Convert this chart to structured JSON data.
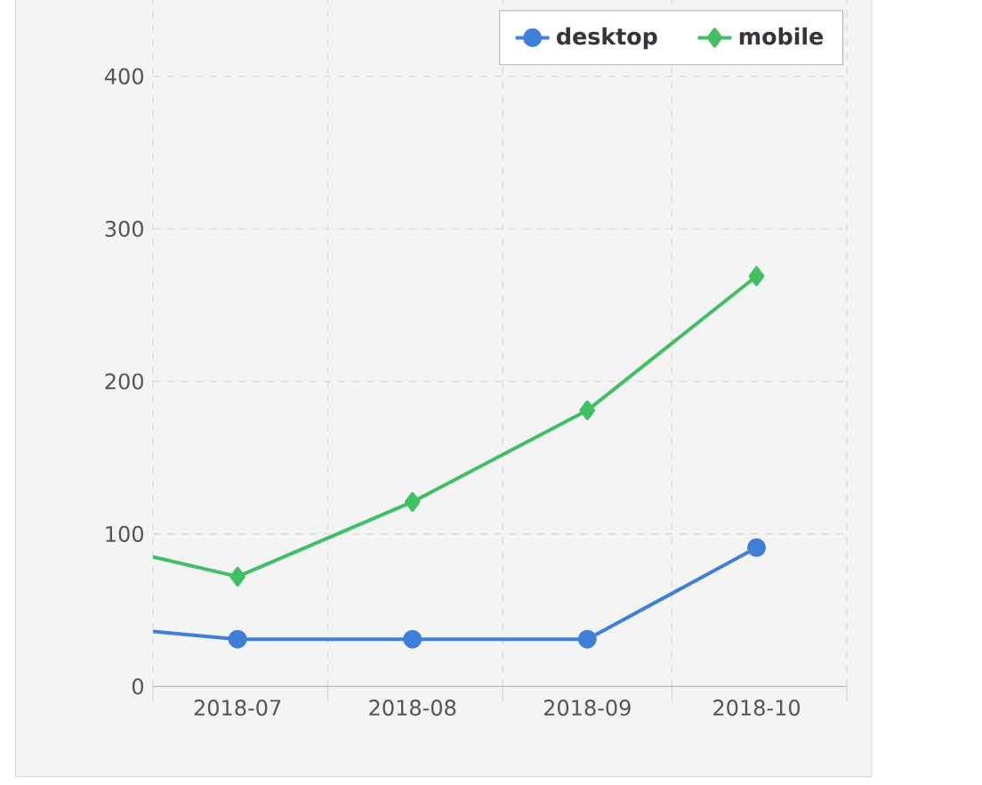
{
  "chart_data": {
    "type": "line",
    "x": [
      "2018-07-01",
      "2018-07-16",
      "2018-08-16",
      "2018-09-16",
      "2018-10-16"
    ],
    "series": [
      {
        "name": "desktop",
        "color": "#3f7fd8",
        "marker": "circle",
        "values": [
          36,
          31,
          31,
          31,
          91
        ]
      },
      {
        "name": "mobile",
        "color": "#41c063",
        "marker": "diamond",
        "values": [
          85,
          72,
          121,
          181,
          269
        ]
      }
    ],
    "xlim": [
      "2018-07-01",
      "2018-11-01"
    ],
    "xticks": [
      {
        "value": "2018-07-01",
        "label": null
      },
      {
        "value": "2018-08-01",
        "label": null
      },
      {
        "value": "2018-09-01",
        "label": null
      },
      {
        "value": "2018-10-01",
        "label": null
      },
      {
        "value": "2018-11-01",
        "label": null
      },
      {
        "value": "2018-07-16",
        "label": "2018-07"
      },
      {
        "value": "2018-08-16",
        "label": "2018-08"
      },
      {
        "value": "2018-09-16",
        "label": "2018-09"
      },
      {
        "value": "2018-10-16",
        "label": "2018-10"
      }
    ],
    "ylim": [
      0,
      450
    ],
    "yticks": [
      0,
      100,
      200,
      300,
      400
    ],
    "grid": true,
    "legend": "top right",
    "line_style": "solid"
  }
}
